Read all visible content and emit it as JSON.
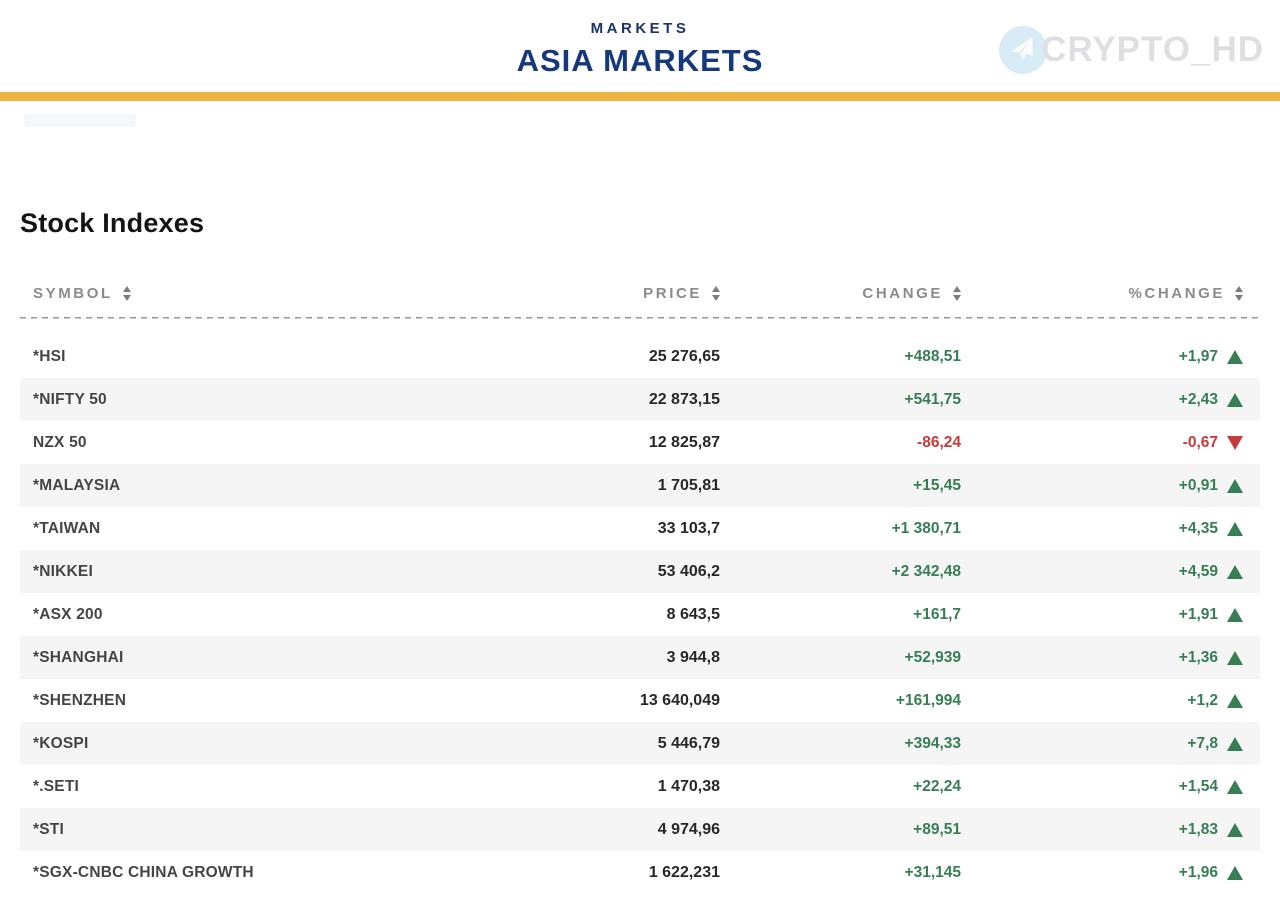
{
  "header": {
    "kicker": "MARKETS",
    "title": "ASIA MARKETS",
    "brand_text": "CRYPTO_HD",
    "accent_bar_color": "#ecb440",
    "title_color": "#16387d"
  },
  "section": {
    "title": "Stock Indexes"
  },
  "table": {
    "columns": [
      {
        "key": "symbol",
        "label": "SYMBOL"
      },
      {
        "key": "price",
        "label": "PRICE"
      },
      {
        "key": "change",
        "label": "CHANGE"
      },
      {
        "key": "pct_change",
        "label": "%CHANGE"
      }
    ],
    "colors": {
      "up": "#377e55",
      "down": "#c53a3a",
      "alt_row_bg": "#f5f5f6"
    },
    "rows": [
      {
        "symbol": "*HSI",
        "price": "25 276,65",
        "change": "+488,51",
        "pct_change": "+1,97",
        "direction": "up"
      },
      {
        "symbol": "*NIFTY 50",
        "price": "22 873,15",
        "change": "+541,75",
        "pct_change": "+2,43",
        "direction": "up"
      },
      {
        "symbol": "NZX 50",
        "price": "12 825,87",
        "change": "-86,24",
        "pct_change": "-0,67",
        "direction": "down"
      },
      {
        "symbol": "*MALAYSIA",
        "price": "1 705,81",
        "change": "+15,45",
        "pct_change": "+0,91",
        "direction": "up"
      },
      {
        "symbol": "*TAIWAN",
        "price": "33 103,7",
        "change": "+1 380,71",
        "pct_change": "+4,35",
        "direction": "up"
      },
      {
        "symbol": "*NIKKEI",
        "price": "53 406,2",
        "change": "+2 342,48",
        "pct_change": "+4,59",
        "direction": "up"
      },
      {
        "symbol": "*ASX 200",
        "price": "8 643,5",
        "change": "+161,7",
        "pct_change": "+1,91",
        "direction": "up"
      },
      {
        "symbol": "*SHANGHAI",
        "price": "3 944,8",
        "change": "+52,939",
        "pct_change": "+1,36",
        "direction": "up"
      },
      {
        "symbol": "*SHENZHEN",
        "price": "13 640,049",
        "change": "+161,994",
        "pct_change": "+1,2",
        "direction": "up"
      },
      {
        "symbol": "*KOSPI",
        "price": "5 446,79",
        "change": "+394,33",
        "pct_change": "+7,8",
        "direction": "up"
      },
      {
        "symbol": "*.SETI",
        "price": "1 470,38",
        "change": "+22,24",
        "pct_change": "+1,54",
        "direction": "up"
      },
      {
        "symbol": "*STI",
        "price": "4 974,96",
        "change": "+89,51",
        "pct_change": "+1,83",
        "direction": "up"
      },
      {
        "symbol": "*SGX-CNBC CHINA GROWTH",
        "price": "1 622,231",
        "change": "+31,145",
        "pct_change": "+1,96",
        "direction": "up"
      }
    ]
  }
}
